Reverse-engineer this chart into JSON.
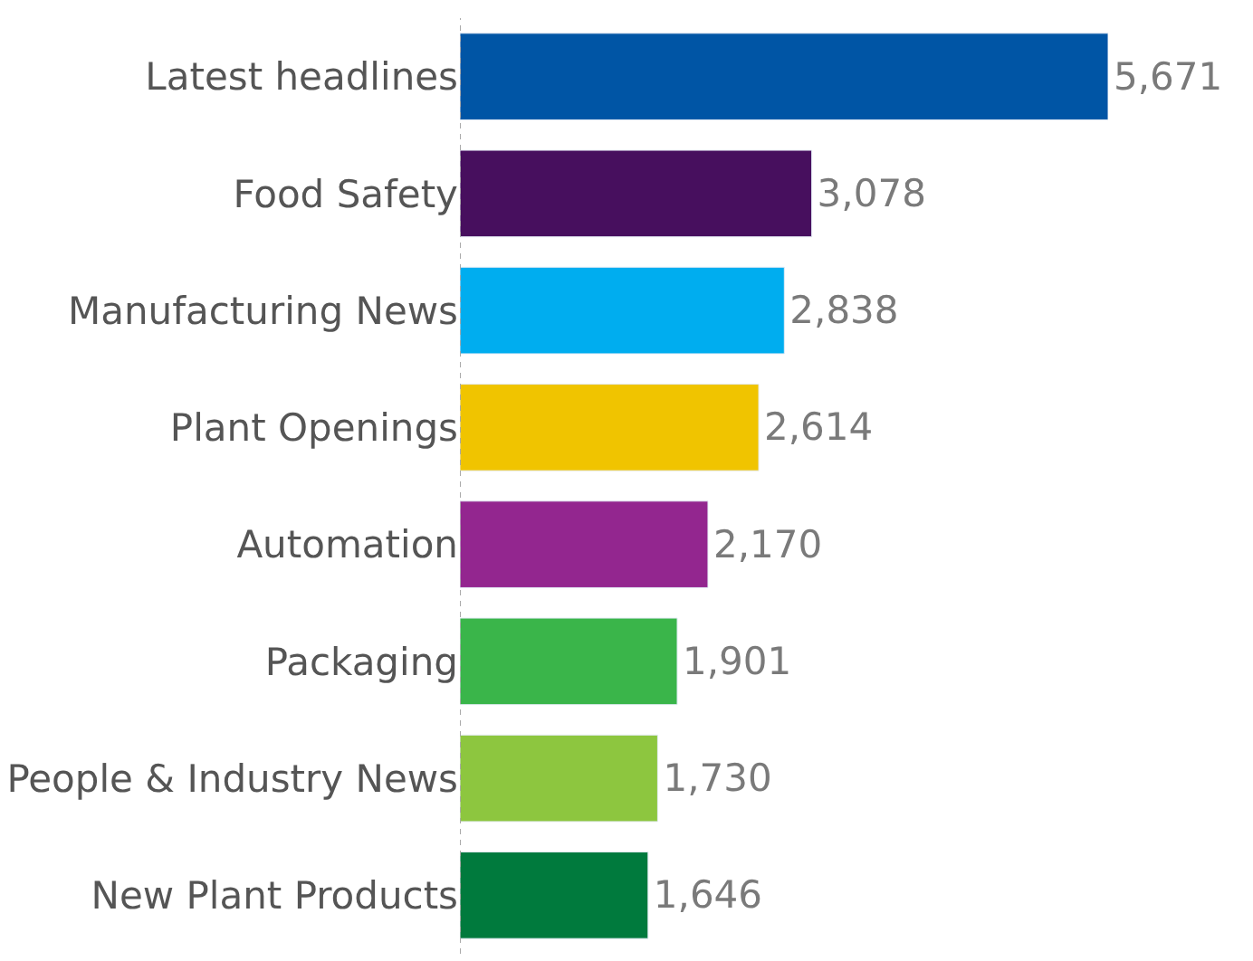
{
  "chart_data": {
    "type": "bar",
    "orientation": "horizontal",
    "categories": [
      "Latest headlines",
      "Food Safety",
      "Manufacturing News",
      "Plant Openings",
      "Automation",
      "Packaging",
      "People & Industry News",
      "New Plant Products"
    ],
    "values": [
      5671,
      3078,
      2838,
      2614,
      2170,
      1901,
      1730,
      1646
    ],
    "colors": [
      "#0055a5",
      "#470f5e",
      "#00adef",
      "#f0c400",
      "#93268f",
      "#3ab54a",
      "#8dc63f",
      "#007a3d"
    ],
    "value_labels": [
      "5,671",
      "3,078",
      "2,838",
      "2,614",
      "2,170",
      "1,901",
      "1,730",
      "1,646"
    ]
  }
}
